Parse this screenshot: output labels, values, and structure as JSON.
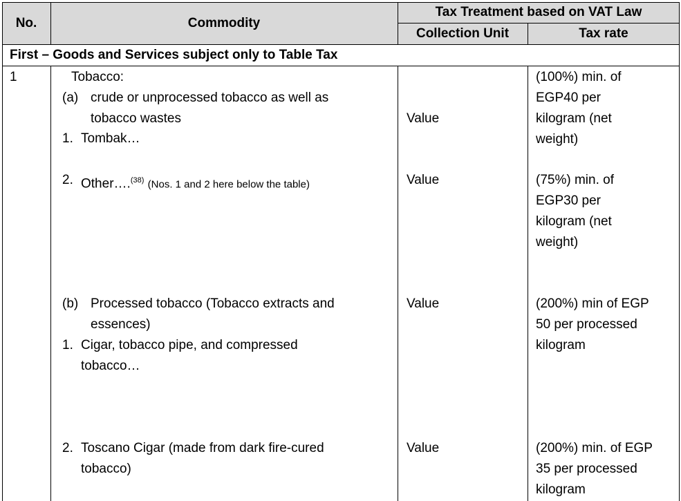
{
  "header": {
    "no": "No.",
    "commodity": "Commodity",
    "group": "Tax Treatment based on VAT Law",
    "collection_unit": "Collection Unit",
    "tax_rate": "Tax rate"
  },
  "section": "First – Goods and Services subject only to Table Tax",
  "row": {
    "no": "1",
    "title": "Tobacco:",
    "items": [
      {
        "label": "(a)",
        "text": [
          "crude or unprocessed tobacco as well as",
          "tobacco wastes"
        ]
      },
      {
        "label": "1.",
        "text": [
          "Tombak…"
        ]
      },
      {
        "label": "2.",
        "text": [
          "Other…."
        ],
        "footnote": "(38)",
        "note": "(Nos. 1 and 2 here below the table)"
      },
      {
        "label": "(b)",
        "text": [
          "Processed tobacco (Tobacco extracts and",
          "essences)"
        ]
      },
      {
        "label": "1.",
        "text": [
          "Cigar, tobacco pipe, and compressed",
          "tobacco…"
        ]
      },
      {
        "label": "2.",
        "text": [
          "Toscano Cigar (made from dark fire-cured",
          "tobacco)"
        ]
      }
    ],
    "entries": [
      {
        "unit": "Value",
        "rate": [
          "(100%) min. of",
          "EGP40 per",
          "kilogram (net",
          "weight)"
        ]
      },
      {
        "unit": "Value",
        "rate": [
          "(75%) min. of",
          "EGP30 per",
          "kilogram (net",
          "weight)"
        ]
      },
      {
        "unit": "Value",
        "rate": [
          "(200%) min of EGP",
          "50 per processed",
          "kilogram"
        ]
      },
      {
        "unit": "Value",
        "rate": [
          "(200%) min. of EGP",
          "35 per processed",
          "kilogram"
        ]
      }
    ]
  }
}
